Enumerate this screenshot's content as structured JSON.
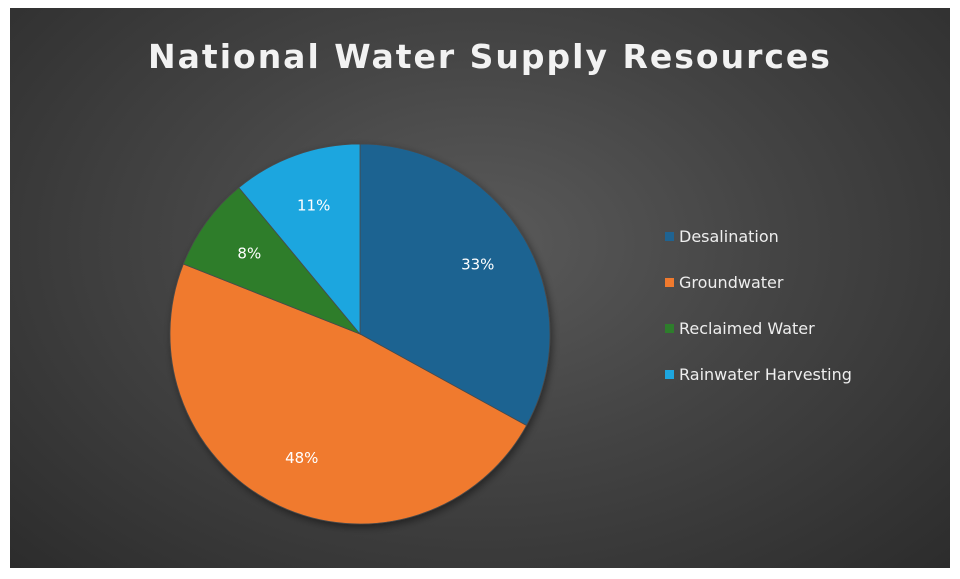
{
  "chart_data": {
    "type": "pie",
    "title": "National Water Supply Resources",
    "categories": [
      "Desalination",
      "Groundwater",
      "Reclaimed Water",
      "Rainwater Harvesting"
    ],
    "values": [
      33,
      48,
      8,
      11
    ],
    "labels": [
      "33%",
      "48%",
      "8%",
      "11%"
    ],
    "colors": [
      "#1f6391",
      "#f07a2e",
      "#2e7d2c",
      "#1ea6df"
    ],
    "legend_position": "right"
  }
}
